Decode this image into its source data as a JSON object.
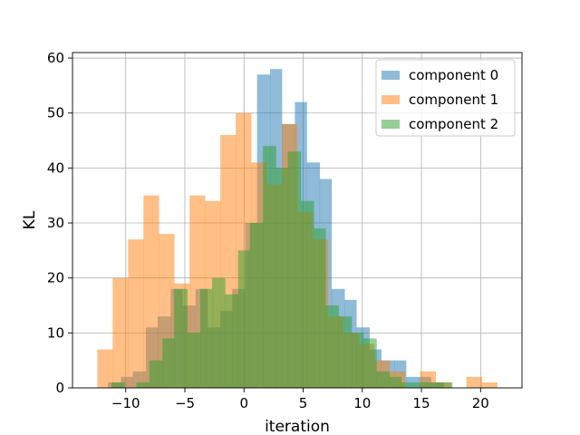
{
  "chart_data": {
    "type": "bar",
    "xlabel": "iteration",
    "ylabel": "KL",
    "xlim": [
      -14.5,
      23.5
    ],
    "ylim": [
      0,
      61
    ],
    "xticks": [
      -10,
      -5,
      0,
      5,
      10,
      15,
      20
    ],
    "yticks": [
      0,
      10,
      20,
      30,
      40,
      50,
      60
    ],
    "grid": true,
    "legend_position": "top-right",
    "alpha": 0.5,
    "series": [
      {
        "name": "component 0",
        "color": "#1f77b4",
        "edges": [
          -11.5,
          -10.4,
          -9.4,
          -8.3,
          -7.3,
          -6.2,
          -5.2,
          -4.1,
          -3.1,
          -2.0,
          -1.0,
          0.1,
          1.1,
          2.2,
          3.2,
          4.3,
          5.3,
          6.4,
          7.4,
          8.5,
          9.5,
          10.6,
          11.6,
          12.7,
          13.7,
          14.8,
          15.8,
          16.9
        ],
        "values": [
          1,
          2,
          3,
          11,
          13,
          18,
          15,
          18,
          11,
          14,
          18,
          30,
          57,
          58,
          48,
          52,
          41,
          38,
          18,
          16,
          11,
          7,
          5,
          5,
          2,
          2,
          1
        ]
      },
      {
        "name": "component 1",
        "color": "#ff7f0e",
        "edges": [
          -12.4,
          -11.1,
          -9.8,
          -8.5,
          -7.2,
          -5.9,
          -4.6,
          -3.3,
          -2.0,
          -0.7,
          0.6,
          1.9,
          3.2,
          4.5,
          5.8,
          7.1,
          8.4,
          9.7,
          11.0,
          12.3,
          13.6,
          14.9,
          16.2,
          17.5,
          18.8,
          20.1,
          21.4,
          22.1
        ],
        "values": [
          7,
          20,
          27,
          35,
          28,
          19,
          35,
          34,
          46,
          50,
          41,
          37,
          48,
          32,
          27,
          13,
          10,
          8,
          5,
          3,
          0,
          3,
          1,
          0,
          2,
          1,
          0
        ]
      },
      {
        "name": "component 2",
        "color": "#2ca02c",
        "edges": [
          -11.2,
          -10.1,
          -9.1,
          -8.0,
          -6.9,
          -5.9,
          -4.8,
          -3.7,
          -2.7,
          -1.6,
          -0.5,
          0.5,
          1.6,
          2.7,
          3.7,
          4.8,
          5.9,
          6.9,
          8.0,
          9.1,
          10.1,
          11.2,
          12.3,
          13.3,
          14.4,
          15.5,
          16.5,
          17.6
        ],
        "values": [
          1,
          0,
          1,
          5,
          9,
          18,
          10,
          18,
          20,
          17,
          25,
          30,
          44,
          40,
          43,
          34,
          29,
          15,
          13,
          10,
          9,
          3,
          2,
          1,
          1,
          1,
          1
        ]
      }
    ]
  }
}
